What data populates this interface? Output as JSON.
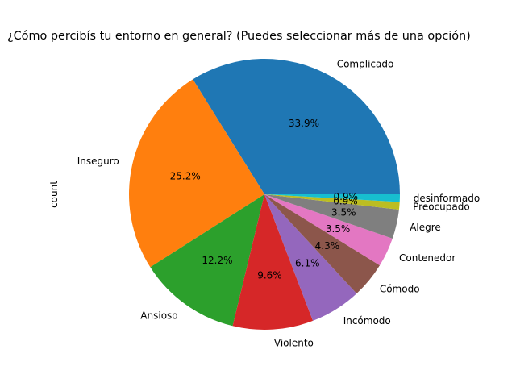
{
  "chart_data": {
    "type": "pie",
    "title": "¿Cómo percibís tu entorno en general? (Puedes seleccionar más de una opción)",
    "ylabel": "count",
    "start_angle_deg": 0,
    "counterclock": true,
    "slices": [
      {
        "label": "Complicado",
        "percent": 33.9,
        "percent_text": "33.9%",
        "color": "#1f77b4"
      },
      {
        "label": "Inseguro",
        "percent": 25.2,
        "percent_text": "25.2%",
        "color": "#ff7f0e"
      },
      {
        "label": "Ansioso",
        "percent": 12.2,
        "percent_text": "12.2%",
        "color": "#2ca02c"
      },
      {
        "label": "Violento",
        "percent": 9.6,
        "percent_text": "9.6%",
        "color": "#d62728"
      },
      {
        "label": "Incómodo",
        "percent": 6.1,
        "percent_text": "6.1%",
        "color": "#9467bd"
      },
      {
        "label": "Cómodo",
        "percent": 4.3,
        "percent_text": "4.3%",
        "color": "#8c564b"
      },
      {
        "label": "Contenedor",
        "percent": 3.5,
        "percent_text": "3.5%",
        "color": "#e377c2"
      },
      {
        "label": "Alegre",
        "percent": 3.5,
        "percent_text": "3.5%",
        "color": "#7f7f7f"
      },
      {
        "label": "Preocupado",
        "percent": 0.9,
        "percent_text": "0.9%",
        "color": "#bcbd22"
      },
      {
        "label": "desinformado",
        "percent": 0.9,
        "percent_text": "0.9%",
        "color": "#17becf"
      }
    ]
  }
}
